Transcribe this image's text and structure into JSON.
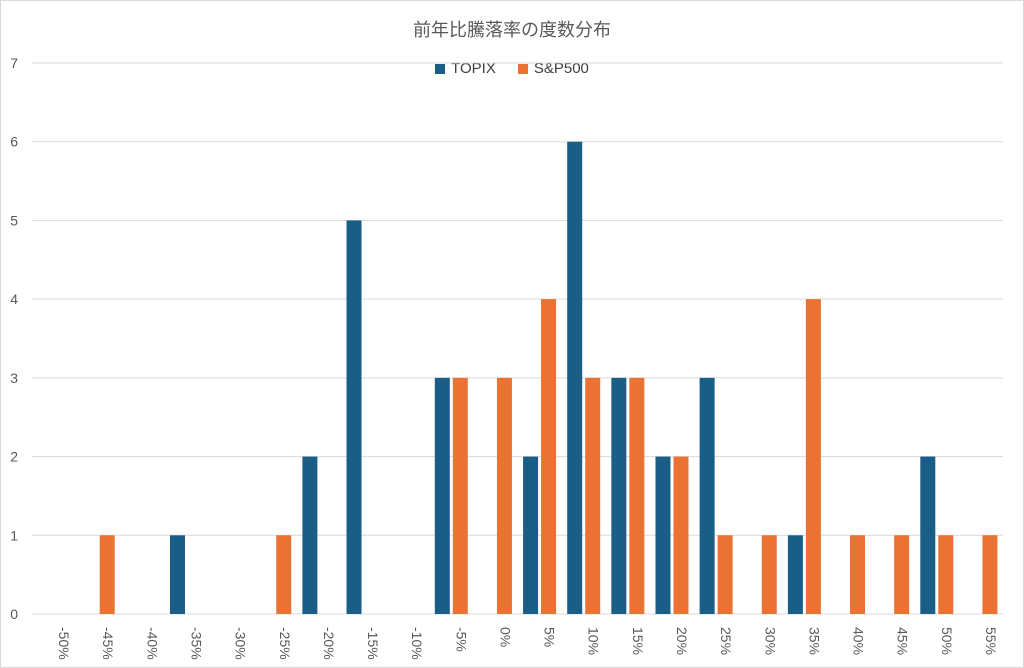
{
  "chart_data": {
    "type": "bar",
    "title": "前年比騰落率の度数分布",
    "categories": [
      "-50%",
      "-45%",
      "-40%",
      "-35%",
      "-30%",
      "-25%",
      "-20%",
      "-15%",
      "-10%",
      "-5%",
      "0%",
      "5%",
      "10%",
      "15%",
      "20%",
      "25%",
      "30%",
      "35%",
      "40%",
      "45%",
      "50%",
      "55%"
    ],
    "series": [
      {
        "name": "TOPIX",
        "color": "#1a5e85",
        "values": [
          0,
          0,
          0,
          1,
          0,
          0,
          2,
          5,
          0,
          3,
          0,
          2,
          6,
          3,
          2,
          3,
          0,
          1,
          0,
          0,
          2,
          0
        ]
      },
      {
        "name": "S&P500",
        "color": "#ea7232",
        "values": [
          0,
          1,
          0,
          0,
          0,
          1,
          0,
          0,
          0,
          3,
          3,
          4,
          3,
          3,
          2,
          1,
          1,
          4,
          1,
          1,
          1,
          1
        ]
      }
    ],
    "ylim": [
      0,
      7
    ],
    "yticks": [
      0,
      1,
      2,
      3,
      4,
      5,
      6,
      7
    ],
    "grid": true,
    "legend_position": "top-center"
  }
}
